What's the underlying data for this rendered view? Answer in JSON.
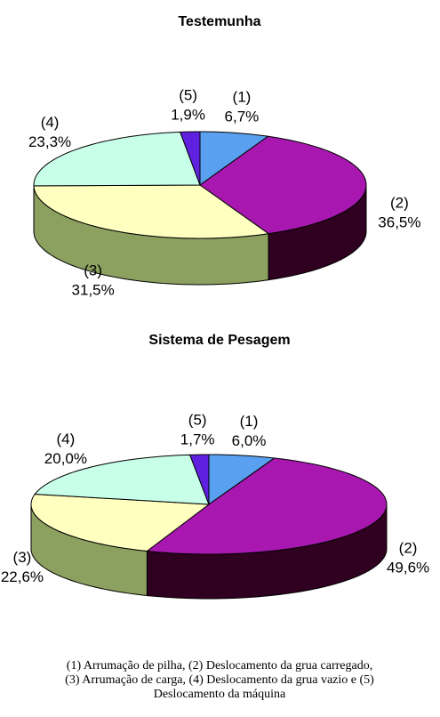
{
  "chart_data": [
    {
      "type": "pie3d",
      "title": "Testemunha",
      "categories": [
        "(1)",
        "(2)",
        "(3)",
        "(4)",
        "(5)"
      ],
      "values": [
        6.7,
        36.5,
        31.5,
        23.3,
        1.9
      ],
      "value_labels": [
        "6,7%",
        "36,5%",
        "31,5%",
        "23,3%",
        "1,9%"
      ],
      "colors": [
        "#5aa0f0",
        "#a818b0",
        "#ffffc0",
        "#c8ffe8",
        "#6020e0"
      ],
      "side_colors": [
        "#3060a0",
        "#300020",
        "#8ca060",
        "#70a090",
        "#301080"
      ]
    },
    {
      "type": "pie3d",
      "title": "Sistema de Pesagem",
      "categories": [
        "(1)",
        "(2)",
        "(3)",
        "(4)",
        "(5)"
      ],
      "values": [
        6.0,
        49.6,
        22.6,
        20.0,
        1.7
      ],
      "value_labels": [
        "6,0%",
        "49,6%",
        "22,6%",
        "20,0%",
        "1,7%"
      ],
      "colors": [
        "#5aa0f0",
        "#a818b0",
        "#ffffc0",
        "#c8ffe8",
        "#6020e0"
      ],
      "side_colors": [
        "#3060a0",
        "#300020",
        "#8ca060",
        "#70a090",
        "#301080"
      ]
    }
  ],
  "caption": [
    "(1) Arrumação de pilha, (2) Deslocamento da grua carregado,",
    "(3) Arrumação de carga, (4) Deslocamento da grua vazio e (5)",
    "Deslocamento da máquina"
  ]
}
